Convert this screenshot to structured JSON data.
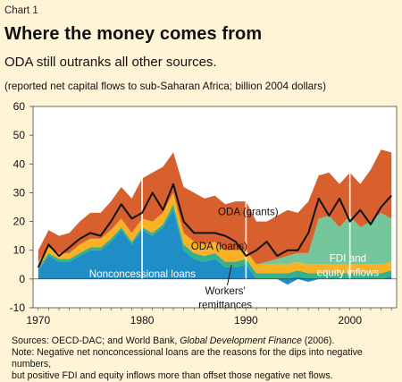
{
  "header": {
    "chart_number": "Chart 1",
    "title": "Where the money comes from",
    "subtitle": "ODA still outranks all other sources.",
    "units_note": "(reported net capital flows to sub-Saharan Africa; billion 2004 dollars)"
  },
  "sources": {
    "prefix": "Sources: OECD-DAC; and World Bank, ",
    "title_italic": "Global Development Finance",
    "suffix": " (2006).",
    "note_line1": "Note: Negative net nonconcessional loans are the reasons for the dips into negative numbers,",
    "note_line2": "but positive FDI and equity inflows more than offset those negative net flows."
  },
  "colors": {
    "background": "#FFF4D6",
    "nonconcessional_loans": "#1F8DC6",
    "workers_remittances": "#38B08A",
    "oda_loans": "#F8B224",
    "oda_grants": "#D8602E",
    "fdi_equity": "#74C79A",
    "total_line": "#111111"
  },
  "chart_data": {
    "type": "area",
    "title": "Where the money comes from",
    "x": [
      1970,
      1971,
      1972,
      1973,
      1974,
      1975,
      1976,
      1977,
      1978,
      1979,
      1980,
      1981,
      1982,
      1983,
      1984,
      1985,
      1986,
      1987,
      1988,
      1989,
      1990,
      1991,
      1992,
      1993,
      1994,
      1995,
      1996,
      1997,
      1998,
      1999,
      2000,
      2001,
      2002,
      2003,
      2004
    ],
    "x_ticks": [
      1970,
      1980,
      1990,
      2000
    ],
    "y_ticks": [
      -10,
      0,
      10,
      20,
      30,
      40,
      50,
      60
    ],
    "ylim": [
      -10,
      60
    ],
    "xlim": [
      1969.5,
      2004.5
    ],
    "grid": "x-only",
    "series": [
      {
        "name": "Nonconcessional loans",
        "color_key": "nonconcessional_loans",
        "values": [
          3,
          8,
          6,
          6,
          8,
          10,
          10,
          13,
          17,
          12,
          17,
          15,
          18,
          24,
          10,
          7,
          6,
          7,
          4,
          4,
          5,
          0,
          0,
          0,
          -2,
          1,
          -1,
          0,
          0,
          0,
          0,
          0,
          0,
          0,
          1
        ]
      },
      {
        "name": "Workers' remittances",
        "color_key": "workers_remittances",
        "values": [
          1,
          1,
          1,
          1,
          1,
          1,
          1,
          1,
          1,
          1,
          1,
          1,
          1,
          2,
          2,
          2,
          2,
          2,
          2,
          2,
          2,
          2,
          2,
          2,
          2,
          2,
          2,
          2,
          2,
          2,
          2,
          2,
          2,
          2,
          2
        ]
      },
      {
        "name": "ODA (loans)",
        "color_key": "oda_loans",
        "values": [
          2,
          2,
          2,
          2,
          3,
          3,
          3,
          3,
          3,
          3,
          3,
          4,
          4,
          4,
          4,
          4,
          4,
          4,
          4,
          4,
          3,
          3,
          3,
          3,
          3,
          3,
          3,
          3,
          3,
          3,
          3,
          3,
          3,
          3,
          3
        ]
      },
      {
        "name": "FDI and equity inflows",
        "color_key": "fdi_equity",
        "values": [
          0,
          0,
          0,
          0,
          0,
          0,
          0,
          0,
          0,
          0,
          0,
          0,
          0,
          0,
          0,
          0,
          0,
          0,
          0,
          0,
          0,
          0,
          1,
          2,
          3,
          3,
          4,
          16,
          17,
          13,
          17,
          13,
          15,
          18,
          15
        ]
      },
      {
        "name": "ODA (grants)",
        "color_key": "oda_grants",
        "values": [
          4,
          6,
          6,
          7,
          8,
          9,
          9,
          10,
          11,
          12,
          14,
          17,
          16,
          14,
          16,
          17,
          16,
          16,
          16,
          17,
          17,
          15,
          14,
          15,
          16,
          14,
          18,
          15,
          15,
          15,
          15,
          15,
          18,
          22,
          23
        ]
      }
    ],
    "total_line": {
      "values": [
        4,
        12,
        8,
        11,
        14,
        16,
        15,
        20,
        26,
        21,
        23,
        30,
        24,
        33,
        20,
        16,
        16,
        16,
        15,
        13,
        8,
        10,
        13,
        8,
        10,
        10,
        16,
        28,
        22,
        28,
        20,
        24,
        19,
        25,
        29
      ]
    },
    "annotations": {
      "oda_grants": "ODA (grants)",
      "oda_loans": "ODA (loans)",
      "nonconcessional": "Nonconcessional loans",
      "fdi_line1": "FDI and",
      "fdi_line2": "equity inflows",
      "workers_line1": "Workers'",
      "workers_line2": "remittances"
    }
  }
}
